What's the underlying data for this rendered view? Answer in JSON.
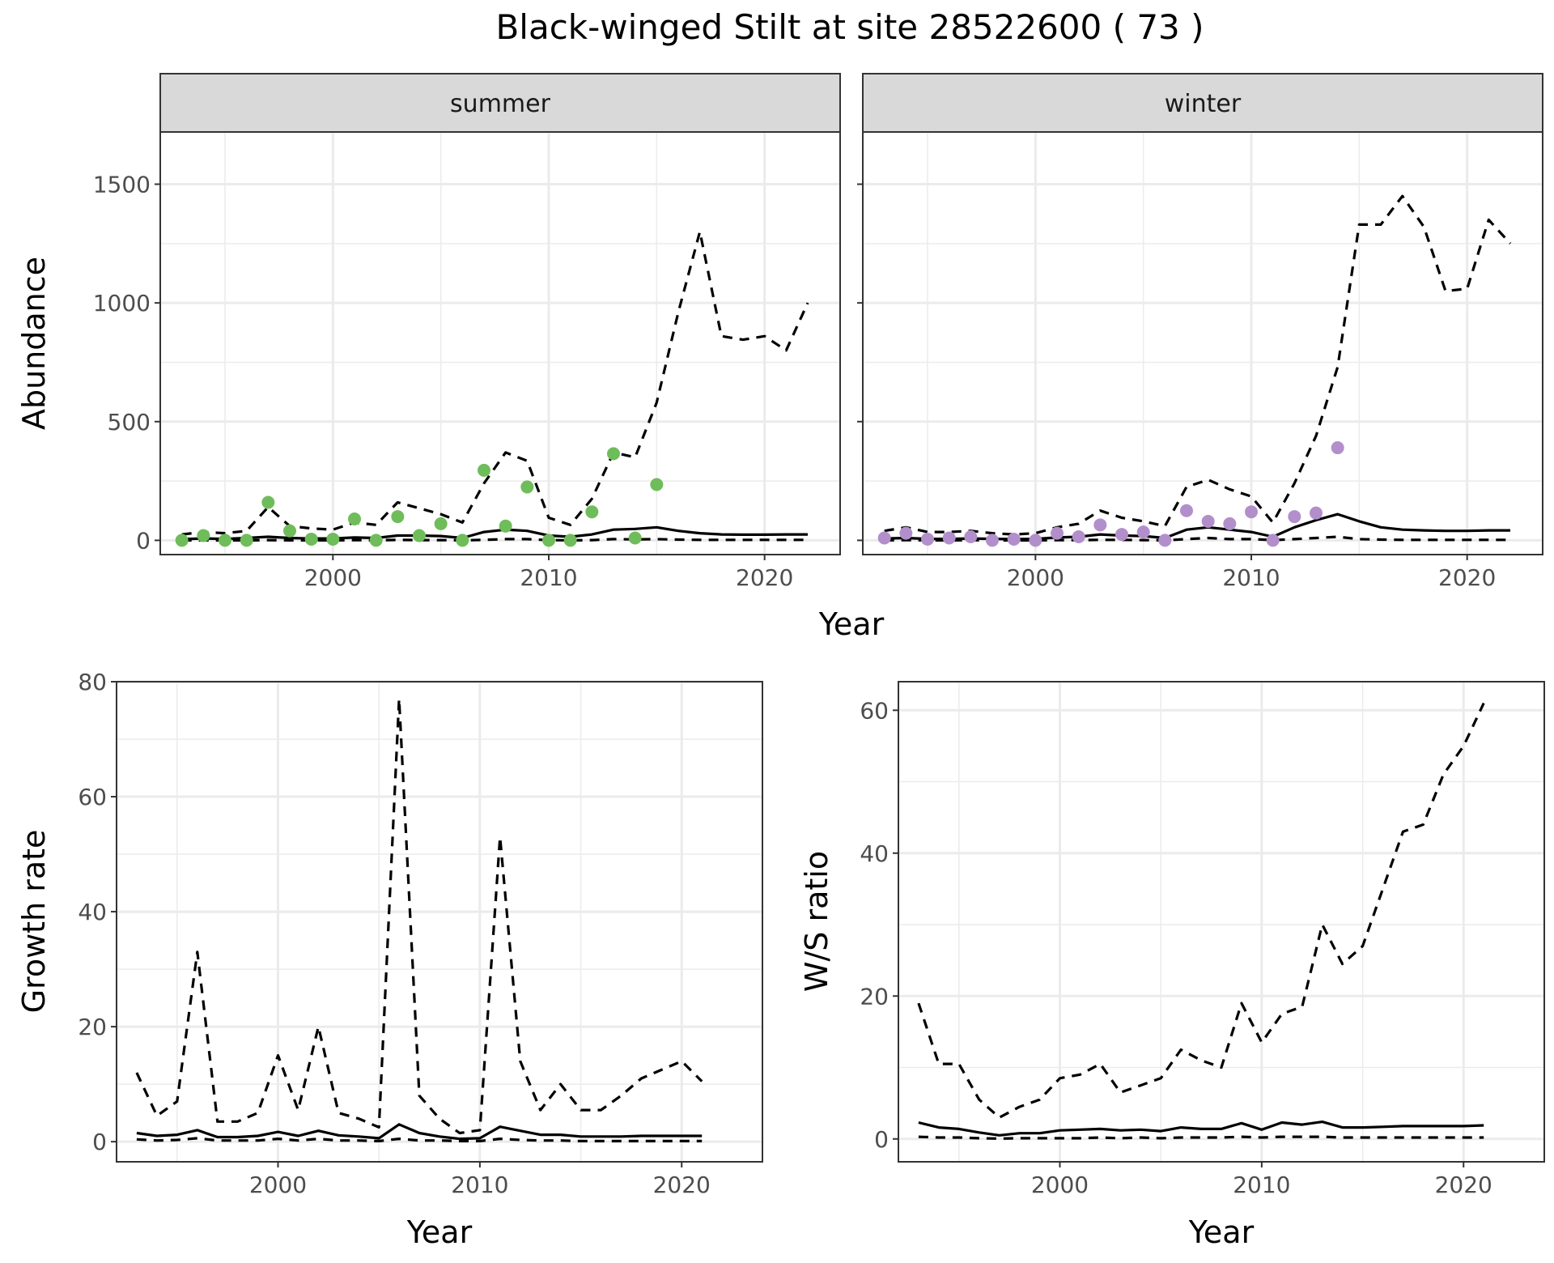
{
  "title": "Black-winged Stilt at site 28522600 ( 73 )",
  "colors": {
    "summer_points": "#6ebd5a",
    "winter_points": "#b28fcb",
    "strip_fill": "#d9d9d9",
    "lines": "#000000"
  },
  "chart_data": [
    {
      "id": "abundance",
      "type": "line",
      "facets": [
        "summer",
        "winter"
      ],
      "xlabel": "Year",
      "ylabel": "Abundance",
      "xlim": [
        1992,
        2023.5
      ],
      "ylim": [
        -60,
        1720
      ],
      "xticks": [
        2000,
        2010,
        2020
      ],
      "yticks": [
        0,
        500,
        1000,
        1500
      ],
      "grid": true,
      "series_styles": {
        "upper": "dashed",
        "median": "solid",
        "lower": "dashed"
      },
      "panels": [
        {
          "facet": "summer",
          "point_color": "#6ebd5a",
          "x": [
            1993,
            1994,
            1995,
            1996,
            1997,
            1998,
            1999,
            2000,
            2001,
            2002,
            2003,
            2004,
            2005,
            2006,
            2007,
            2008,
            2009,
            2010,
            2011,
            2012,
            2013,
            2014,
            2015,
            2016,
            2017,
            2018,
            2019,
            2020,
            2021,
            2022
          ],
          "upper": [
            25,
            35,
            30,
            40,
            140,
            60,
            50,
            45,
            75,
            65,
            160,
            135,
            110,
            75,
            240,
            370,
            335,
            95,
            65,
            175,
            370,
            350,
            580,
            960,
            1300,
            860,
            845,
            860,
            800,
            1000
          ],
          "median": [
            5,
            8,
            6,
            10,
            15,
            10,
            8,
            8,
            12,
            10,
            20,
            20,
            18,
            10,
            35,
            45,
            40,
            20,
            15,
            25,
            45,
            48,
            55,
            40,
            30,
            25,
            24,
            24,
            25,
            25
          ],
          "lower": [
            0,
            0,
            0,
            0,
            1,
            0,
            0,
            0,
            1,
            0,
            2,
            1,
            1,
            0,
            2,
            5,
            5,
            1,
            0,
            1,
            5,
            4,
            5,
            3,
            2,
            2,
            2,
            2,
            2,
            2
          ],
          "points": {
            "x": [
              1993,
              1994,
              1995,
              1996,
              1997,
              1998,
              1999,
              2000,
              2001,
              2002,
              2003,
              2004,
              2005,
              2006,
              2007,
              2008,
              2009,
              2010,
              2011,
              2012,
              2013,
              2014,
              2015
            ],
            "y": [
              0,
              20,
              0,
              0,
              160,
              40,
              5,
              5,
              90,
              0,
              100,
              20,
              70,
              0,
              295,
              60,
              225,
              0,
              0,
              120,
              365,
              10,
              235
            ]
          }
        },
        {
          "facet": "winter",
          "point_color": "#b28fcb",
          "x": [
            1993,
            1994,
            1995,
            1996,
            1997,
            1998,
            1999,
            2000,
            2001,
            2002,
            2003,
            2004,
            2005,
            2006,
            2007,
            2008,
            2009,
            2010,
            2011,
            2012,
            2013,
            2014,
            2015,
            2016,
            2017,
            2018,
            2019,
            2020,
            2021,
            2022
          ],
          "upper": [
            40,
            55,
            35,
            35,
            40,
            30,
            25,
            30,
            55,
            70,
            125,
            95,
            80,
            60,
            225,
            255,
            215,
            185,
            75,
            240,
            440,
            730,
            1330,
            1330,
            1450,
            1320,
            1050,
            1060,
            1350,
            1250
          ],
          "median": [
            8,
            10,
            6,
            6,
            8,
            6,
            5,
            6,
            12,
            15,
            25,
            20,
            18,
            10,
            45,
            55,
            45,
            35,
            15,
            55,
            85,
            110,
            80,
            55,
            45,
            42,
            40,
            40,
            42,
            42
          ],
          "lower": [
            0,
            1,
            0,
            0,
            1,
            0,
            0,
            0,
            1,
            1,
            2,
            2,
            1,
            0,
            5,
            10,
            5,
            5,
            1,
            5,
            10,
            15,
            5,
            3,
            2,
            2,
            2,
            2,
            2,
            2
          ],
          "points": {
            "x": [
              1993,
              1994,
              1995,
              1996,
              1997,
              1998,
              1999,
              2000,
              2001,
              2002,
              2003,
              2004,
              2005,
              2006,
              2007,
              2008,
              2009,
              2010,
              2011,
              2012,
              2013,
              2014
            ],
            "y": [
              10,
              30,
              5,
              10,
              15,
              0,
              5,
              0,
              30,
              15,
              65,
              25,
              35,
              0,
              125,
              80,
              70,
              120,
              0,
              100,
              115,
              390
            ]
          }
        }
      ]
    },
    {
      "id": "growth",
      "type": "line",
      "xlabel": "Year",
      "ylabel": "Growth rate",
      "xlim": [
        1992,
        2024
      ],
      "ylim": [
        -3.5,
        80
      ],
      "xticks": [
        2000,
        2010,
        2020
      ],
      "yticks": [
        0,
        20,
        40,
        60,
        80
      ],
      "grid": true,
      "series_styles": {
        "upper": "dashed",
        "median": "solid",
        "lower": "dashed"
      },
      "x": [
        1993,
        1994,
        1995,
        1996,
        1997,
        1998,
        1999,
        2000,
        2001,
        2002,
        2003,
        2004,
        2005,
        2006,
        2007,
        2008,
        2009,
        2010,
        2011,
        2012,
        2013,
        2014,
        2015,
        2016,
        2017,
        2018,
        2019,
        2020,
        2021
      ],
      "upper": [
        12,
        4.5,
        7,
        33,
        3.5,
        3.5,
        5,
        15,
        5.5,
        20,
        5,
        4,
        2.5,
        77,
        8,
        4,
        1.5,
        2,
        53,
        14,
        5.5,
        10,
        5.5,
        5.5,
        8,
        11,
        12.5,
        14,
        10.5
      ],
      "median": [
        1.5,
        1,
        1.2,
        2,
        0.8,
        0.8,
        1,
        1.7,
        1,
        1.9,
        1.1,
        0.9,
        0.6,
        3,
        1.5,
        0.9,
        0.5,
        0.6,
        2.6,
        1.9,
        1.2,
        1.2,
        0.9,
        0.9,
        0.9,
        1,
        1,
        1,
        1
      ],
      "lower": [
        0.4,
        0.2,
        0.3,
        0.6,
        0.2,
        0.2,
        0.2,
        0.5,
        0.2,
        0.5,
        0.2,
        0.2,
        0.1,
        0.5,
        0.2,
        0.2,
        0.1,
        0.1,
        0.5,
        0.3,
        0.2,
        0.2,
        0.1,
        0.1,
        0.1,
        0.1,
        0.1,
        0.1,
        0.1
      ]
    },
    {
      "id": "ws_ratio",
      "type": "line",
      "xlabel": "Year",
      "ylabel": "W/S ratio",
      "xlim": [
        1992,
        2024
      ],
      "ylim": [
        -3.2,
        64
      ],
      "xticks": [
        2000,
        2010,
        2020
      ],
      "yticks": [
        0,
        20,
        40,
        60
      ],
      "grid": true,
      "series_styles": {
        "upper": "dashed",
        "median": "solid",
        "lower": "dashed"
      },
      "x": [
        1993,
        1994,
        1995,
        1996,
        1997,
        1998,
        1999,
        2000,
        2001,
        2002,
        2003,
        2004,
        2005,
        2006,
        2007,
        2008,
        2009,
        2010,
        2011,
        2012,
        2013,
        2014,
        2015,
        2016,
        2017,
        2018,
        2019,
        2020,
        2021
      ],
      "upper": [
        19,
        10.5,
        10.5,
        5.5,
        3,
        4.5,
        5.5,
        8.5,
        9,
        10.5,
        6.5,
        7.5,
        8.5,
        12.5,
        11,
        10,
        19,
        13.5,
        17.5,
        18.5,
        30,
        24.5,
        27,
        35,
        43,
        44,
        51,
        55,
        61
      ],
      "median": [
        2.3,
        1.6,
        1.4,
        0.9,
        0.5,
        0.8,
        0.8,
        1.2,
        1.3,
        1.4,
        1.2,
        1.3,
        1.1,
        1.6,
        1.4,
        1.4,
        2.2,
        1.3,
        2.3,
        2,
        2.4,
        1.6,
        1.6,
        1.7,
        1.8,
        1.8,
        1.8,
        1.8,
        1.9
      ],
      "lower": [
        0.3,
        0.2,
        0.2,
        0.1,
        0.05,
        0.1,
        0.1,
        0.1,
        0.1,
        0.2,
        0.1,
        0.2,
        0.1,
        0.2,
        0.2,
        0.2,
        0.3,
        0.2,
        0.3,
        0.3,
        0.3,
        0.2,
        0.2,
        0.2,
        0.2,
        0.2,
        0.2,
        0.2,
        0.2
      ]
    }
  ]
}
